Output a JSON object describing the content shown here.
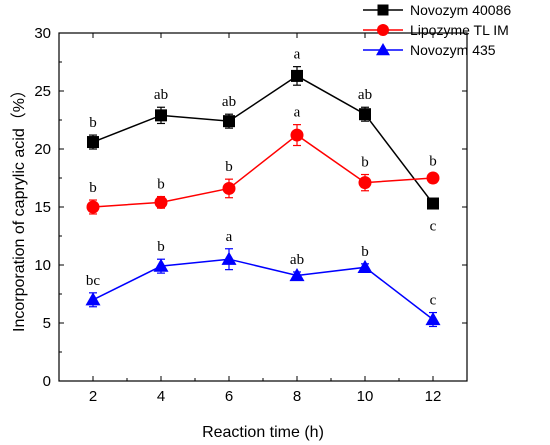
{
  "chart_data": {
    "type": "line",
    "xlabel": "Reaction time (h)",
    "ylabel": "Incorporation of caprylic acid（%）",
    "x": [
      2,
      4,
      6,
      8,
      10,
      12
    ],
    "xlim": [
      1,
      13
    ],
    "ylim": [
      0,
      30
    ],
    "x_ticks": [
      2,
      4,
      6,
      8,
      10,
      12
    ],
    "y_ticks": [
      0,
      5,
      10,
      15,
      20,
      25,
      30
    ],
    "grid": false,
    "legend_position": "top-right, outside plot",
    "series": [
      {
        "name": "Novozym 40086",
        "marker": "square",
        "color": "#000000",
        "values": [
          20.6,
          22.9,
          22.4,
          26.3,
          23.0,
          15.3
        ],
        "errors": [
          0.6,
          0.7,
          0.6,
          0.8,
          0.6,
          0.0
        ],
        "labels": [
          "b",
          "ab",
          "ab",
          "a",
          "ab",
          "c"
        ]
      },
      {
        "name": "Lipozyme TL IM",
        "marker": "circle",
        "color": "#ff0000",
        "values": [
          15.0,
          15.4,
          16.6,
          21.2,
          17.1,
          17.5
        ],
        "errors": [
          0.6,
          0.5,
          0.8,
          0.9,
          0.7,
          0.4
        ],
        "labels": [
          "b",
          "b",
          "b",
          "a",
          "b",
          "b"
        ]
      },
      {
        "name": "Novozym 435",
        "marker": "triangle",
        "color": "#0000ff",
        "values": [
          7.0,
          9.9,
          10.5,
          9.1,
          9.8,
          5.3
        ],
        "errors": [
          0.6,
          0.6,
          0.9,
          0.3,
          0.3,
          0.6
        ],
        "labels": [
          "bc",
          "b",
          "a",
          "ab",
          "b",
          "c"
        ]
      }
    ]
  }
}
